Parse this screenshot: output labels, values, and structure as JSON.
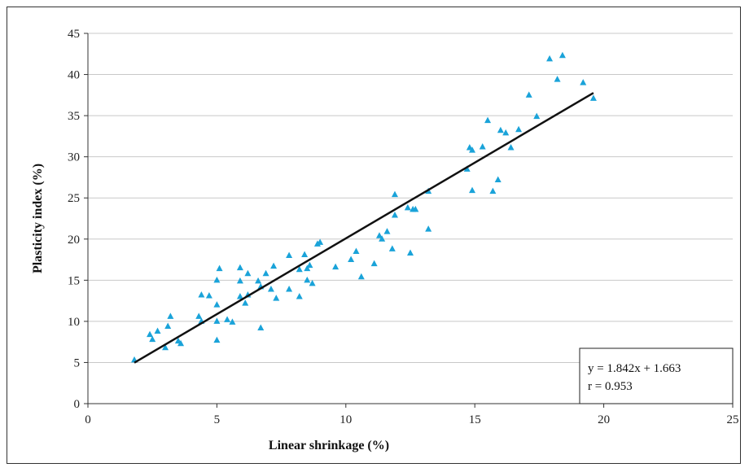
{
  "chart_data": {
    "type": "scatter",
    "title": "",
    "xlabel": "Linear shrinkage (%)",
    "ylabel": "Plasticity index (%)",
    "xlim": [
      0,
      25
    ],
    "ylim": [
      0,
      45
    ],
    "x_ticks": [
      0,
      5,
      10,
      15,
      20,
      25
    ],
    "y_ticks": [
      0,
      5,
      10,
      15,
      20,
      25,
      30,
      35,
      40,
      45
    ],
    "grid": "horizontal",
    "marker": "triangle",
    "marker_color": "#1aa3d9",
    "line_color": "#111111",
    "series": [
      {
        "values": [
          [
            1.8,
            5.3
          ],
          [
            2.4,
            8.4
          ],
          [
            2.5,
            7.8
          ],
          [
            2.7,
            8.8
          ],
          [
            3.0,
            6.8
          ],
          [
            3.1,
            9.4
          ],
          [
            3.2,
            10.6
          ],
          [
            3.5,
            7.6
          ],
          [
            3.6,
            7.3
          ],
          [
            4.3,
            10.6
          ],
          [
            4.4,
            13.2
          ],
          [
            4.4,
            10.0
          ],
          [
            4.7,
            13.1
          ],
          [
            5.0,
            15.0
          ],
          [
            5.0,
            12.0
          ],
          [
            5.0,
            10.0
          ],
          [
            5.0,
            7.7
          ],
          [
            5.1,
            16.4
          ],
          [
            5.4,
            10.2
          ],
          [
            5.6,
            9.9
          ],
          [
            5.9,
            16.5
          ],
          [
            5.9,
            14.9
          ],
          [
            5.9,
            13.0
          ],
          [
            6.1,
            12.2
          ],
          [
            6.2,
            13.2
          ],
          [
            6.2,
            15.8
          ],
          [
            6.6,
            14.9
          ],
          [
            6.7,
            14.2
          ],
          [
            6.7,
            9.2
          ],
          [
            6.9,
            15.8
          ],
          [
            7.1,
            13.9
          ],
          [
            7.2,
            16.7
          ],
          [
            7.3,
            12.8
          ],
          [
            7.8,
            18.0
          ],
          [
            7.8,
            13.9
          ],
          [
            8.2,
            16.3
          ],
          [
            8.2,
            13.0
          ],
          [
            8.4,
            18.1
          ],
          [
            8.5,
            16.4
          ],
          [
            8.5,
            15.0
          ],
          [
            8.6,
            16.8
          ],
          [
            8.7,
            14.6
          ],
          [
            8.9,
            19.4
          ],
          [
            9.0,
            19.6
          ],
          [
            9.6,
            16.6
          ],
          [
            10.2,
            17.5
          ],
          [
            10.4,
            18.5
          ],
          [
            10.6,
            15.4
          ],
          [
            11.1,
            17.0
          ],
          [
            11.3,
            20.4
          ],
          [
            11.4,
            20.0
          ],
          [
            11.6,
            20.9
          ],
          [
            11.8,
            18.8
          ],
          [
            11.9,
            22.9
          ],
          [
            11.9,
            25.4
          ],
          [
            12.4,
            23.8
          ],
          [
            12.5,
            18.3
          ],
          [
            12.6,
            23.6
          ],
          [
            12.7,
            23.6
          ],
          [
            13.2,
            25.8
          ],
          [
            13.2,
            21.2
          ],
          [
            14.7,
            28.5
          ],
          [
            14.8,
            31.1
          ],
          [
            14.9,
            30.8
          ],
          [
            14.9,
            25.9
          ],
          [
            15.3,
            31.2
          ],
          [
            15.5,
            34.4
          ],
          [
            15.7,
            25.8
          ],
          [
            15.9,
            27.2
          ],
          [
            16.0,
            33.2
          ],
          [
            16.2,
            32.9
          ],
          [
            16.4,
            31.1
          ],
          [
            16.7,
            33.3
          ],
          [
            17.1,
            37.5
          ],
          [
            17.4,
            34.9
          ],
          [
            17.9,
            41.9
          ],
          [
            18.2,
            39.4
          ],
          [
            18.4,
            42.3
          ],
          [
            19.2,
            39.0
          ],
          [
            19.6,
            37.1
          ]
        ]
      }
    ],
    "trendline": {
      "slope": 1.842,
      "intercept": 1.663,
      "x_range": [
        1.8,
        19.6
      ]
    },
    "annotation": {
      "equation": "y = 1.842x + 1.663",
      "r": "r = 0.953",
      "placement": "bottom-right"
    }
  }
}
